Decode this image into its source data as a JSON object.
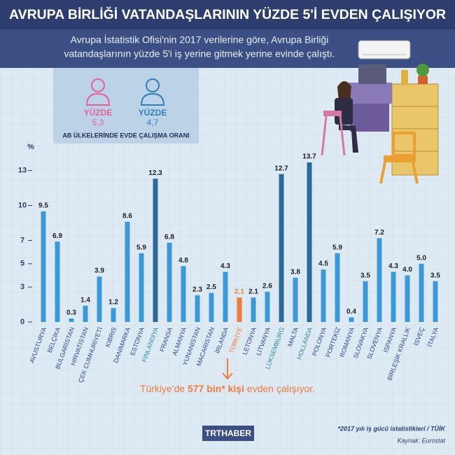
{
  "header": {
    "title": "AVRUPA BİRLİĞİ VATANDAŞLARININ YÜZDE 5'İ EVDEN ÇALIŞIYOR",
    "subtitle": [
      "Avrupa İstatistik Ofisi'nin 2017 verilerine göre, Avrupa Birliği",
      "vatandaşlarının yüzde 5'i iş yerine gitmek yerine evinde çalıştı."
    ]
  },
  "legend": {
    "items": [
      {
        "label": "YÜZDE",
        "value": "5,3",
        "color": "#e8609a"
      },
      {
        "label": "YÜZDE",
        "value": "4,7",
        "color": "#2f7fc0"
      }
    ],
    "caption": "AB ÜLKELERİNDE EVDE ÇALIŞMA ORANI"
  },
  "chart_data": {
    "type": "bar",
    "unit": "%",
    "categories": [
      "AVUSTURYA",
      "BELÇİKA",
      "BULGARİSTAN",
      "HIRVATİSTAN",
      "ÇEK CUMHURİYETİ",
      "KIBRIS",
      "DANİMARKA",
      "ESTONYA",
      "FİNLANDİYA",
      "FRANSA",
      "ALMANYA",
      "YUNANİSTAN",
      "MACARİSTAN",
      "İRLANDA",
      "TÜRKİYE",
      "LETONYA",
      "LİTVANYA",
      "LÜKSEMBURG",
      "MALTA",
      "HOLLANDA",
      "POLONYA",
      "PORTEKİZ",
      "ROMANYA",
      "SLOVAKYA",
      "SLOVENYA",
      "İSPANYA",
      "BİRLEŞİK KRALLIK",
      "İSVEÇ",
      "İTALYA"
    ],
    "values": [
      9.5,
      6.9,
      0.3,
      1.4,
      3.9,
      1.2,
      8.6,
      5.9,
      12.3,
      6.8,
      4.8,
      2.3,
      2.5,
      4.3,
      2.1,
      2.1,
      2.6,
      12.7,
      3.8,
      13.7,
      4.5,
      5.9,
      0.4,
      3.5,
      7.2,
      4.3,
      4.0,
      5.0,
      3.5
    ],
    "value_labels": [
      "9.5",
      "6.9",
      "0.3",
      "1.4",
      "3.9",
      "1.2",
      "8.6",
      "5.9",
      "12.3",
      "6.8",
      "4.8",
      "2.3",
      "2.5",
      "4.3",
      "2.1",
      "2.1",
      "2.6",
      "12.7",
      "3.8",
      "13.7",
      "4.5",
      "5.9",
      "0.4",
      "3.5",
      "7.2",
      "4.3",
      "4.0",
      "5.0",
      "3.5"
    ],
    "colors": [
      "#3a9ad9",
      "#3a9ad9",
      "#3a9ad9",
      "#3a9ad9",
      "#3a9ad9",
      "#3a9ad9",
      "#3a9ad9",
      "#3a9ad9",
      "#2a6a9a",
      "#3a9ad9",
      "#3a9ad9",
      "#3a9ad9",
      "#3a9ad9",
      "#3a9ad9",
      "#f07a3a",
      "#3a9ad9",
      "#3a9ad9",
      "#2a6a9a",
      "#3a9ad9",
      "#2a6a9a",
      "#3a9ad9",
      "#3a9ad9",
      "#3a9ad9",
      "#3a9ad9",
      "#3a9ad9",
      "#3a9ad9",
      "#3a9ad9",
      "#3a9ad9",
      "#3a9ad9"
    ],
    "label_colors": [
      "#2d4a8a",
      "#2d4a8a",
      "#2d4a8a",
      "#2d4a8a",
      "#2d4a8a",
      "#2d4a8a",
      "#2d4a8a",
      "#2d4a8a",
      "#2a8a9a",
      "#2d4a8a",
      "#2d4a8a",
      "#2d4a8a",
      "#2d4a8a",
      "#2d4a8a",
      "#f07a3a",
      "#2d4a8a",
      "#2d4a8a",
      "#2a8a9a",
      "#2d4a8a",
      "#2a8a9a",
      "#2d4a8a",
      "#2d4a8a",
      "#2d4a8a",
      "#2d4a8a",
      "#2d4a8a",
      "#2d4a8a",
      "#2d4a8a",
      "#2d4a8a",
      "#2d4a8a"
    ],
    "ylim": [
      0,
      14
    ],
    "yticks": [
      0,
      3,
      5,
      7,
      10,
      13
    ]
  },
  "callout": {
    "segments": [
      "Türkiye'de ",
      "577 bin* kişi",
      " evden çalışıyor."
    ]
  },
  "footer": {
    "logo": "TRTHABER",
    "note": "*2017 yılı iş gücü istatistikleri / TÜİK",
    "source": "Kaynak: Eurostat"
  }
}
